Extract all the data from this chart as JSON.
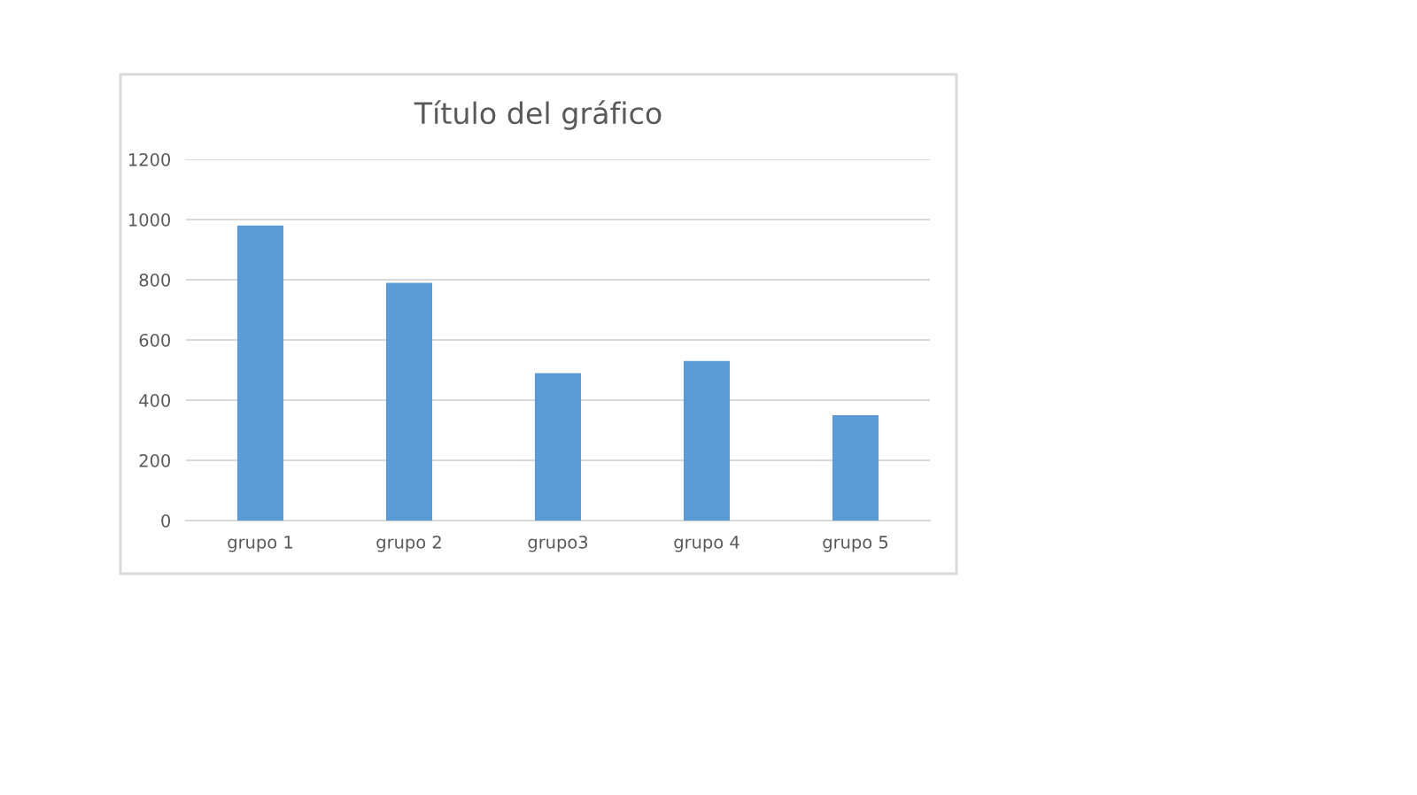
{
  "chart_data": {
    "type": "bar",
    "title": "Título del gráfico",
    "categories": [
      "grupo 1",
      "grupo 2",
      "grupo3",
      "grupo 4",
      "grupo 5"
    ],
    "values": [
      980,
      790,
      490,
      530,
      350
    ],
    "color": "#5b9bd5",
    "ylim": [
      0,
      1200
    ],
    "yticks": [
      0,
      200,
      400,
      600,
      800,
      1000,
      1200
    ],
    "grid": "y",
    "legend": false
  }
}
